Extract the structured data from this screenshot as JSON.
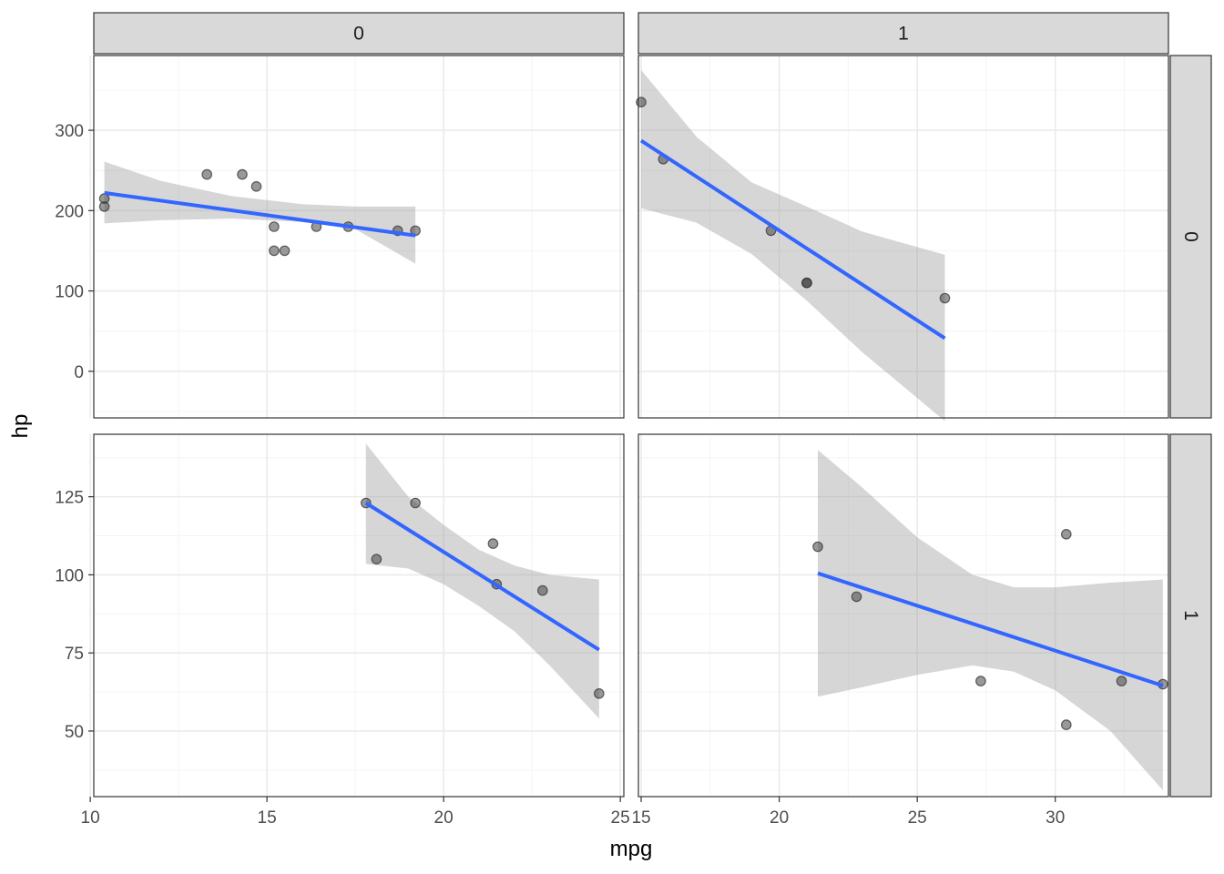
{
  "chart_data": {
    "type": "scatter",
    "title": "",
    "xlabel": "mpg",
    "ylabel": "hp",
    "col_facet_labels": [
      "0",
      "1"
    ],
    "row_facet_labels": [
      "0",
      "1"
    ],
    "colors": {
      "fit_line": "#3366ff",
      "points": "#333333",
      "ribbon": "#999999",
      "strip": "#d9d9d9"
    },
    "columns": [
      {
        "label": "0",
        "xlim": [
          10.1,
          25.1
        ],
        "x_ticks": [
          10,
          15,
          20,
          25
        ],
        "x_minor": [
          12.5,
          17.5,
          22.5
        ]
      },
      {
        "label": "1",
        "xlim": [
          14.9,
          34.1
        ],
        "x_ticks": [
          15,
          20,
          25,
          30
        ],
        "x_minor": [
          17.5,
          22.5,
          27.5,
          32.5
        ]
      }
    ],
    "rows": [
      {
        "label": "0",
        "ylim": [
          -58,
          393
        ],
        "y_ticks": [
          0,
          100,
          200,
          300
        ],
        "y_minor": [
          -50,
          50,
          150,
          250,
          350
        ]
      },
      {
        "label": "1",
        "ylim": [
          29,
          145
        ],
        "y_ticks": [
          50,
          75,
          100,
          125
        ],
        "y_minor": [
          37.5,
          62.5,
          87.5,
          112.5,
          137.5
        ]
      }
    ],
    "panels": [
      {
        "row": 0,
        "col": 0,
        "points": [
          [
            10.4,
            215
          ],
          [
            10.4,
            205
          ],
          [
            13.3,
            245
          ],
          [
            14.3,
            245
          ],
          [
            14.7,
            230
          ],
          [
            15.2,
            180
          ],
          [
            15.2,
            150
          ],
          [
            15.5,
            150
          ],
          [
            16.4,
            180
          ],
          [
            17.3,
            180
          ],
          [
            18.7,
            175
          ],
          [
            19.2,
            175
          ]
        ],
        "fit": {
          "x_range": [
            10.4,
            19.2
          ],
          "y_start": 222,
          "y_end": 169
        },
        "ribbon": [
          [
            10.4,
            184,
            261
          ],
          [
            12,
            188,
            237
          ],
          [
            14,
            190,
            218
          ],
          [
            16,
            186,
            208
          ],
          [
            17.5,
            177,
            205
          ],
          [
            19.2,
            134,
            205
          ]
        ]
      },
      {
        "row": 0,
        "col": 1,
        "points": [
          [
            15,
            335
          ],
          [
            15.8,
            264
          ],
          [
            19.7,
            175
          ],
          [
            21,
            110
          ],
          [
            21,
            110
          ],
          [
            26,
            91
          ]
        ],
        "fit": {
          "x_range": [
            15,
            26
          ],
          "y_start": 287,
          "y_end": 41
        },
        "ribbon": [
          [
            15,
            203,
            375
          ],
          [
            17,
            185,
            292
          ],
          [
            19,
            146,
            235
          ],
          [
            21,
            88,
            205
          ],
          [
            23,
            24,
            174
          ],
          [
            26,
            -62,
            145
          ]
        ]
      },
      {
        "row": 1,
        "col": 0,
        "points": [
          [
            17.8,
            123
          ],
          [
            18.1,
            105
          ],
          [
            19.2,
            123
          ],
          [
            21.4,
            110
          ],
          [
            21.5,
            97
          ],
          [
            22.8,
            95
          ],
          [
            24.4,
            62
          ]
        ],
        "fit": {
          "x_range": [
            17.8,
            24.4
          ],
          "y_start": 123,
          "y_end": 76
        },
        "ribbon": [
          [
            17.8,
            103.5,
            142
          ],
          [
            19,
            102,
            125
          ],
          [
            20,
            97,
            116
          ],
          [
            21,
            90,
            108
          ],
          [
            22,
            82,
            103
          ],
          [
            23,
            71,
            100
          ],
          [
            24.4,
            54,
            98.5
          ]
        ]
      },
      {
        "row": 1,
        "col": 1,
        "points": [
          [
            21.4,
            109
          ],
          [
            22.8,
            93
          ],
          [
            27.3,
            66
          ],
          [
            30.4,
            113
          ],
          [
            30.4,
            52
          ],
          [
            32.4,
            66
          ],
          [
            33.9,
            65
          ]
        ],
        "fit": {
          "x_range": [
            21.4,
            33.9
          ],
          "y_start": 100.5,
          "y_end": 64.5
        },
        "ribbon": [
          [
            21.4,
            61,
            140
          ],
          [
            23,
            64,
            128
          ],
          [
            25,
            68,
            112
          ],
          [
            27,
            71,
            100
          ],
          [
            28.5,
            69,
            96
          ],
          [
            30,
            63,
            96
          ],
          [
            32,
            50,
            97.5
          ],
          [
            33.9,
            31,
            98.5
          ]
        ]
      }
    ]
  }
}
